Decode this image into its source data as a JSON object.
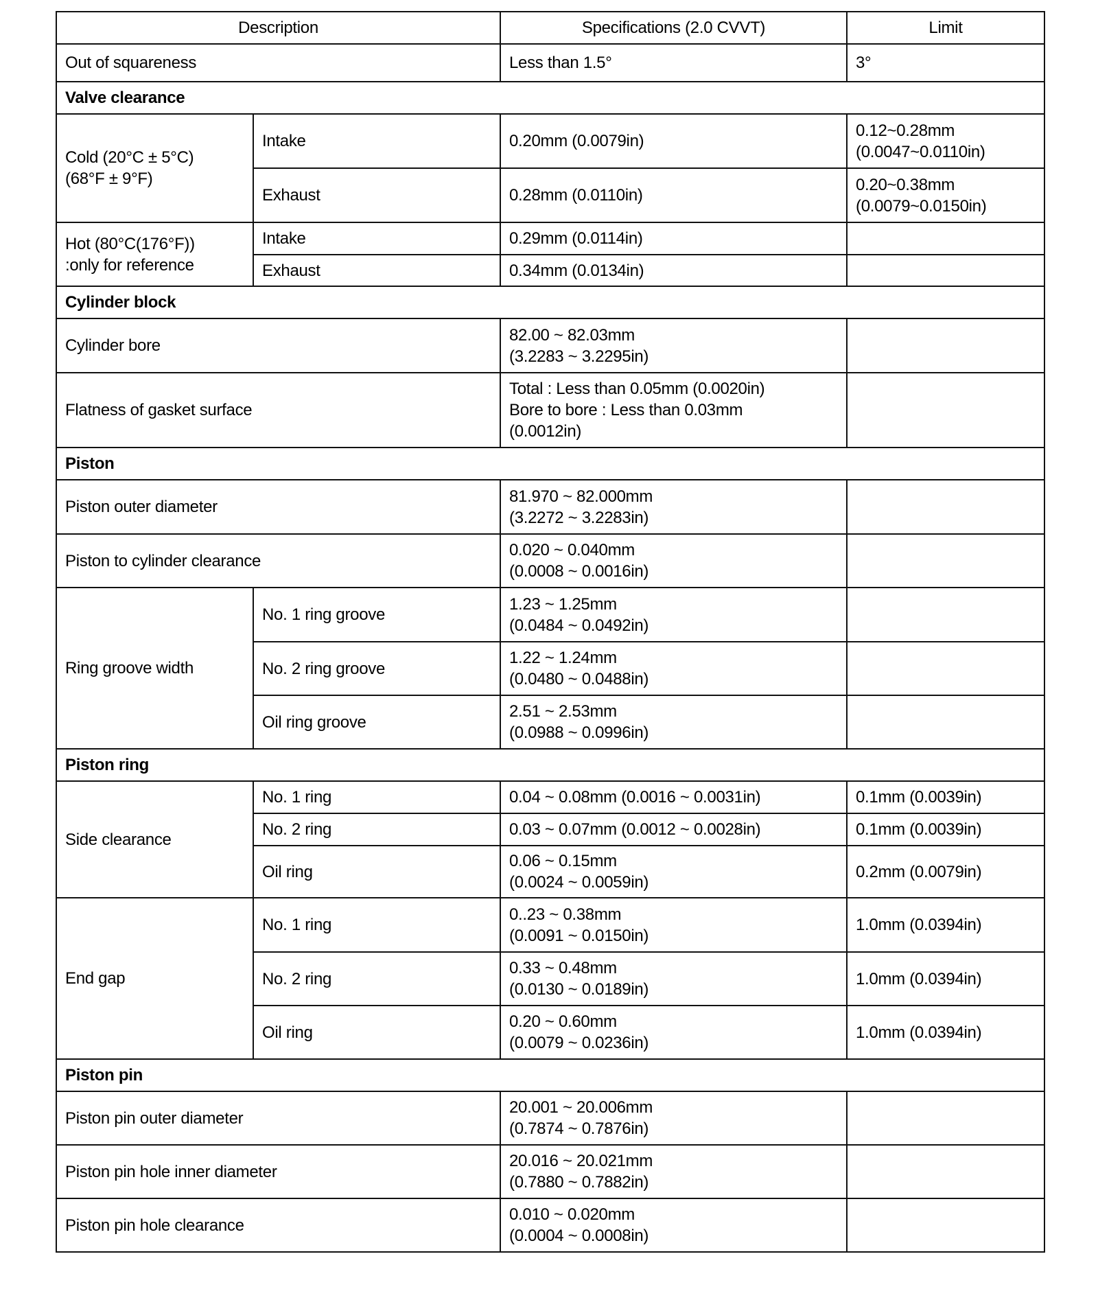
{
  "table": {
    "header": {
      "description": "Description",
      "specifications": "Specifications (2.0 CVVT)",
      "limit": "Limit"
    },
    "rows": [
      {
        "cells": [
          {
            "text": "Out of squareness",
            "colspan": 2
          },
          {
            "text": "Less than 1.5°"
          },
          {
            "text": "3°"
          }
        ]
      },
      {
        "section": true,
        "cells": [
          {
            "text": "Valve clearance",
            "colspan": 4
          }
        ]
      },
      {
        "cells": [
          {
            "text": "Cold (20°C ± 5°C)\n(68°F ± 9°F)",
            "rowspan": 2
          },
          {
            "text": "Intake"
          },
          {
            "text": "0.20mm (0.0079in)"
          },
          {
            "text": "0.12~0.28mm\n(0.0047~0.0110in)"
          }
        ]
      },
      {
        "cells": [
          {
            "text": "Exhaust"
          },
          {
            "text": "0.28mm (0.0110in)"
          },
          {
            "text": "0.20~0.38mm\n(0.0079~0.0150in)"
          }
        ]
      },
      {
        "cells": [
          {
            "text": "Hot (80°C(176°F))\n:only for reference",
            "rowspan": 2
          },
          {
            "text": "Intake"
          },
          {
            "text": "0.29mm (0.0114in)"
          },
          {
            "text": ""
          }
        ]
      },
      {
        "cells": [
          {
            "text": "Exhaust"
          },
          {
            "text": "0.34mm (0.0134in)"
          },
          {
            "text": ""
          }
        ]
      },
      {
        "section": true,
        "cells": [
          {
            "text": "Cylinder  block",
            "colspan": 4
          }
        ]
      },
      {
        "cells": [
          {
            "text": "Cylinder bore",
            "colspan": 2
          },
          {
            "text": "82.00 ~ 82.03mm\n(3.2283 ~ 3.2295in)"
          },
          {
            "text": ""
          }
        ]
      },
      {
        "cells": [
          {
            "text": "Flatness of gasket surface",
            "colspan": 2
          },
          {
            "text": "Total : Less than 0.05mm (0.0020in)\nBore to bore :  Less than 0.03mm\n(0.0012in)"
          },
          {
            "text": ""
          }
        ]
      },
      {
        "section": true,
        "cells": [
          {
            "text": "Piston",
            "colspan": 4
          }
        ]
      },
      {
        "cells": [
          {
            "text": "Piston outer diameter",
            "colspan": 2
          },
          {
            "text": "81.970 ~ 82.000mm\n(3.2272 ~ 3.2283in)"
          },
          {
            "text": ""
          }
        ]
      },
      {
        "cells": [
          {
            "text": "Piston to cylinder clearance",
            "colspan": 2
          },
          {
            "text": "0.020 ~ 0.040mm\n(0.0008 ~ 0.0016in)"
          },
          {
            "text": ""
          }
        ]
      },
      {
        "cells": [
          {
            "text": "Ring groove width",
            "rowspan": 3
          },
          {
            "text": "No.  1 ring groove"
          },
          {
            "text": "1.23 ~ 1.25mm\n(0.0484 ~ 0.0492in)"
          },
          {
            "text": ""
          }
        ]
      },
      {
        "cells": [
          {
            "text": "No.  2 ring groove"
          },
          {
            "text": "1.22 ~ 1.24mm\n(0.0480 ~ 0.0488in)"
          },
          {
            "text": ""
          }
        ]
      },
      {
        "cells": [
          {
            "text": "Oil ring groove"
          },
          {
            "text": "2.51 ~ 2.53mm\n(0.0988 ~ 0.0996in)"
          },
          {
            "text": ""
          }
        ]
      },
      {
        "section": true,
        "cells": [
          {
            "text": "Piston ring",
            "colspan": 4
          }
        ]
      },
      {
        "cells": [
          {
            "text": "Side clearance",
            "rowspan": 3
          },
          {
            "text": "No.  1 ring"
          },
          {
            "text": "0.04 ~ 0.08mm (0.0016 ~ 0.0031in)"
          },
          {
            "text": "0.1mm (0.0039in)"
          }
        ]
      },
      {
        "cells": [
          {
            "text": "No.  2 ring"
          },
          {
            "text": "0.03 ~ 0.07mm (0.0012 ~ 0.0028in)"
          },
          {
            "text": "0.1mm (0.0039in)"
          }
        ]
      },
      {
        "cells": [
          {
            "text": "Oil ring"
          },
          {
            "text": "0.06 ~ 0.15mm\n(0.0024 ~ 0.0059in)"
          },
          {
            "text": "0.2mm (0.0079in)"
          }
        ]
      },
      {
        "cells": [
          {
            "text": "End gap",
            "rowspan": 3
          },
          {
            "text": "No.  1 ring"
          },
          {
            "text": "0..23 ~ 0.38mm\n(0.0091 ~ 0.0150in)"
          },
          {
            "text": "1.0mm (0.0394in)"
          }
        ]
      },
      {
        "cells": [
          {
            "text": "No.  2 ring"
          },
          {
            "text": "0.33 ~ 0.48mm\n(0.0130 ~ 0.0189in)"
          },
          {
            "text": "1.0mm (0.0394in)"
          }
        ]
      },
      {
        "cells": [
          {
            "text": "Oil ring"
          },
          {
            "text": "0.20 ~ 0.60mm\n(0.0079 ~ 0.0236in)"
          },
          {
            "text": "1.0mm (0.0394in)"
          }
        ]
      },
      {
        "section": true,
        "cells": [
          {
            "text": "Piston  pin",
            "colspan": 4
          }
        ]
      },
      {
        "cells": [
          {
            "text": "Piston pin outer diameter",
            "colspan": 2
          },
          {
            "text": "20.001 ~ 20.006mm\n(0.7874 ~ 0.7876in)"
          },
          {
            "text": ""
          }
        ]
      },
      {
        "cells": [
          {
            "text": "Piston pin hole inner diameter",
            "colspan": 2
          },
          {
            "text": "20.016 ~ 20.021mm\n(0.7880 ~ 0.7882in)"
          },
          {
            "text": ""
          }
        ]
      },
      {
        "cells": [
          {
            "text": "Piston pin hole clearance",
            "colspan": 2
          },
          {
            "text": "0.010 ~ 0.020mm\n(0.0004 ~ 0.0008in)"
          },
          {
            "text": ""
          }
        ]
      }
    ]
  }
}
